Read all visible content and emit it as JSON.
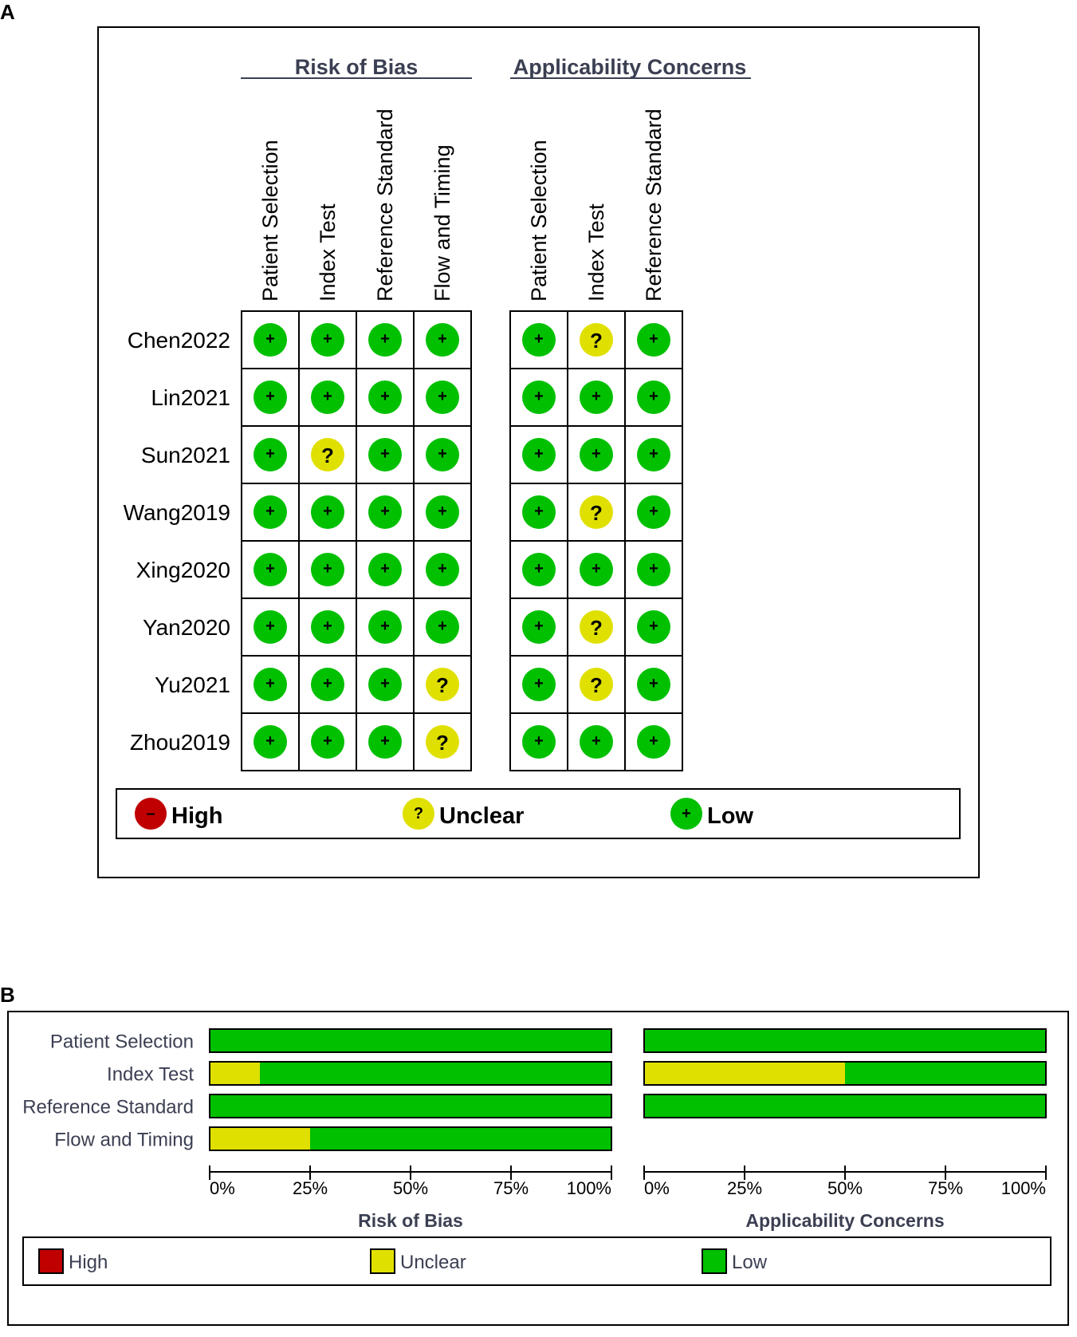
{
  "panels": {
    "a_letter": "A",
    "b_letter": "B"
  },
  "groups": {
    "risk_of_bias": "Risk of Bias",
    "applicability": "Applicability Concerns"
  },
  "domains": {
    "risk_of_bias": [
      "Patient Selection",
      "Index Test",
      "Reference Standard",
      "Flow and Timing"
    ],
    "applicability": [
      "Patient Selection",
      "Index Test",
      "Reference Standard"
    ]
  },
  "studies": [
    {
      "name": "Chen2022",
      "risk": [
        "low",
        "low",
        "low",
        "low"
      ],
      "applicability": [
        "low",
        "unclear",
        "low"
      ]
    },
    {
      "name": "Lin2021",
      "risk": [
        "low",
        "low",
        "low",
        "low"
      ],
      "applicability": [
        "low",
        "low",
        "low"
      ]
    },
    {
      "name": "Sun2021",
      "risk": [
        "low",
        "unclear",
        "low",
        "low"
      ],
      "applicability": [
        "low",
        "low",
        "low"
      ]
    },
    {
      "name": "Wang2019",
      "risk": [
        "low",
        "low",
        "low",
        "low"
      ],
      "applicability": [
        "low",
        "unclear",
        "low"
      ]
    },
    {
      "name": "Xing2020",
      "risk": [
        "low",
        "low",
        "low",
        "low"
      ],
      "applicability": [
        "low",
        "low",
        "low"
      ]
    },
    {
      "name": "Yan2020",
      "risk": [
        "low",
        "low",
        "low",
        "low"
      ],
      "applicability": [
        "low",
        "unclear",
        "low"
      ]
    },
    {
      "name": "Yu2021",
      "risk": [
        "low",
        "low",
        "low",
        "unclear"
      ],
      "applicability": [
        "low",
        "unclear",
        "low"
      ]
    },
    {
      "name": "Zhou2019",
      "risk": [
        "low",
        "low",
        "low",
        "unclear"
      ],
      "applicability": [
        "low",
        "low",
        "low"
      ]
    }
  ],
  "symbols": {
    "low": "+",
    "unclear": "?",
    "high": "–"
  },
  "legend": {
    "high": "High",
    "unclear": "Unclear",
    "low": "Low"
  },
  "colors": {
    "high": "#c00000",
    "unclear": "#e0e000",
    "low": "#00c000",
    "title": "#3b3f52"
  },
  "chart_data": [
    {
      "type": "bar",
      "stacked": true,
      "title": "Risk of Bias",
      "categories": [
        "Patient Selection",
        "Index Test",
        "Reference Standard",
        "Flow and Timing"
      ],
      "series": [
        {
          "name": "High",
          "values": [
            0,
            0,
            0,
            0
          ]
        },
        {
          "name": "Unclear",
          "values": [
            0,
            12.5,
            0,
            25
          ]
        },
        {
          "name": "Low",
          "values": [
            100,
            87.5,
            100,
            75
          ]
        }
      ],
      "xlim": [
        0,
        100
      ],
      "ticks": [
        "0%",
        "25%",
        "50%",
        "75%",
        "100%"
      ],
      "legend": [
        "High",
        "Unclear",
        "Low"
      ]
    },
    {
      "type": "bar",
      "stacked": true,
      "title": "Applicability Concerns",
      "categories": [
        "Patient Selection",
        "Index Test",
        "Reference Standard"
      ],
      "series": [
        {
          "name": "High",
          "values": [
            0,
            0,
            0
          ]
        },
        {
          "name": "Unclear",
          "values": [
            0,
            50,
            0
          ]
        },
        {
          "name": "Low",
          "values": [
            100,
            50,
            100
          ]
        }
      ],
      "xlim": [
        0,
        100
      ],
      "ticks": [
        "0%",
        "25%",
        "50%",
        "75%",
        "100%"
      ],
      "legend": [
        "High",
        "Unclear",
        "Low"
      ]
    }
  ]
}
